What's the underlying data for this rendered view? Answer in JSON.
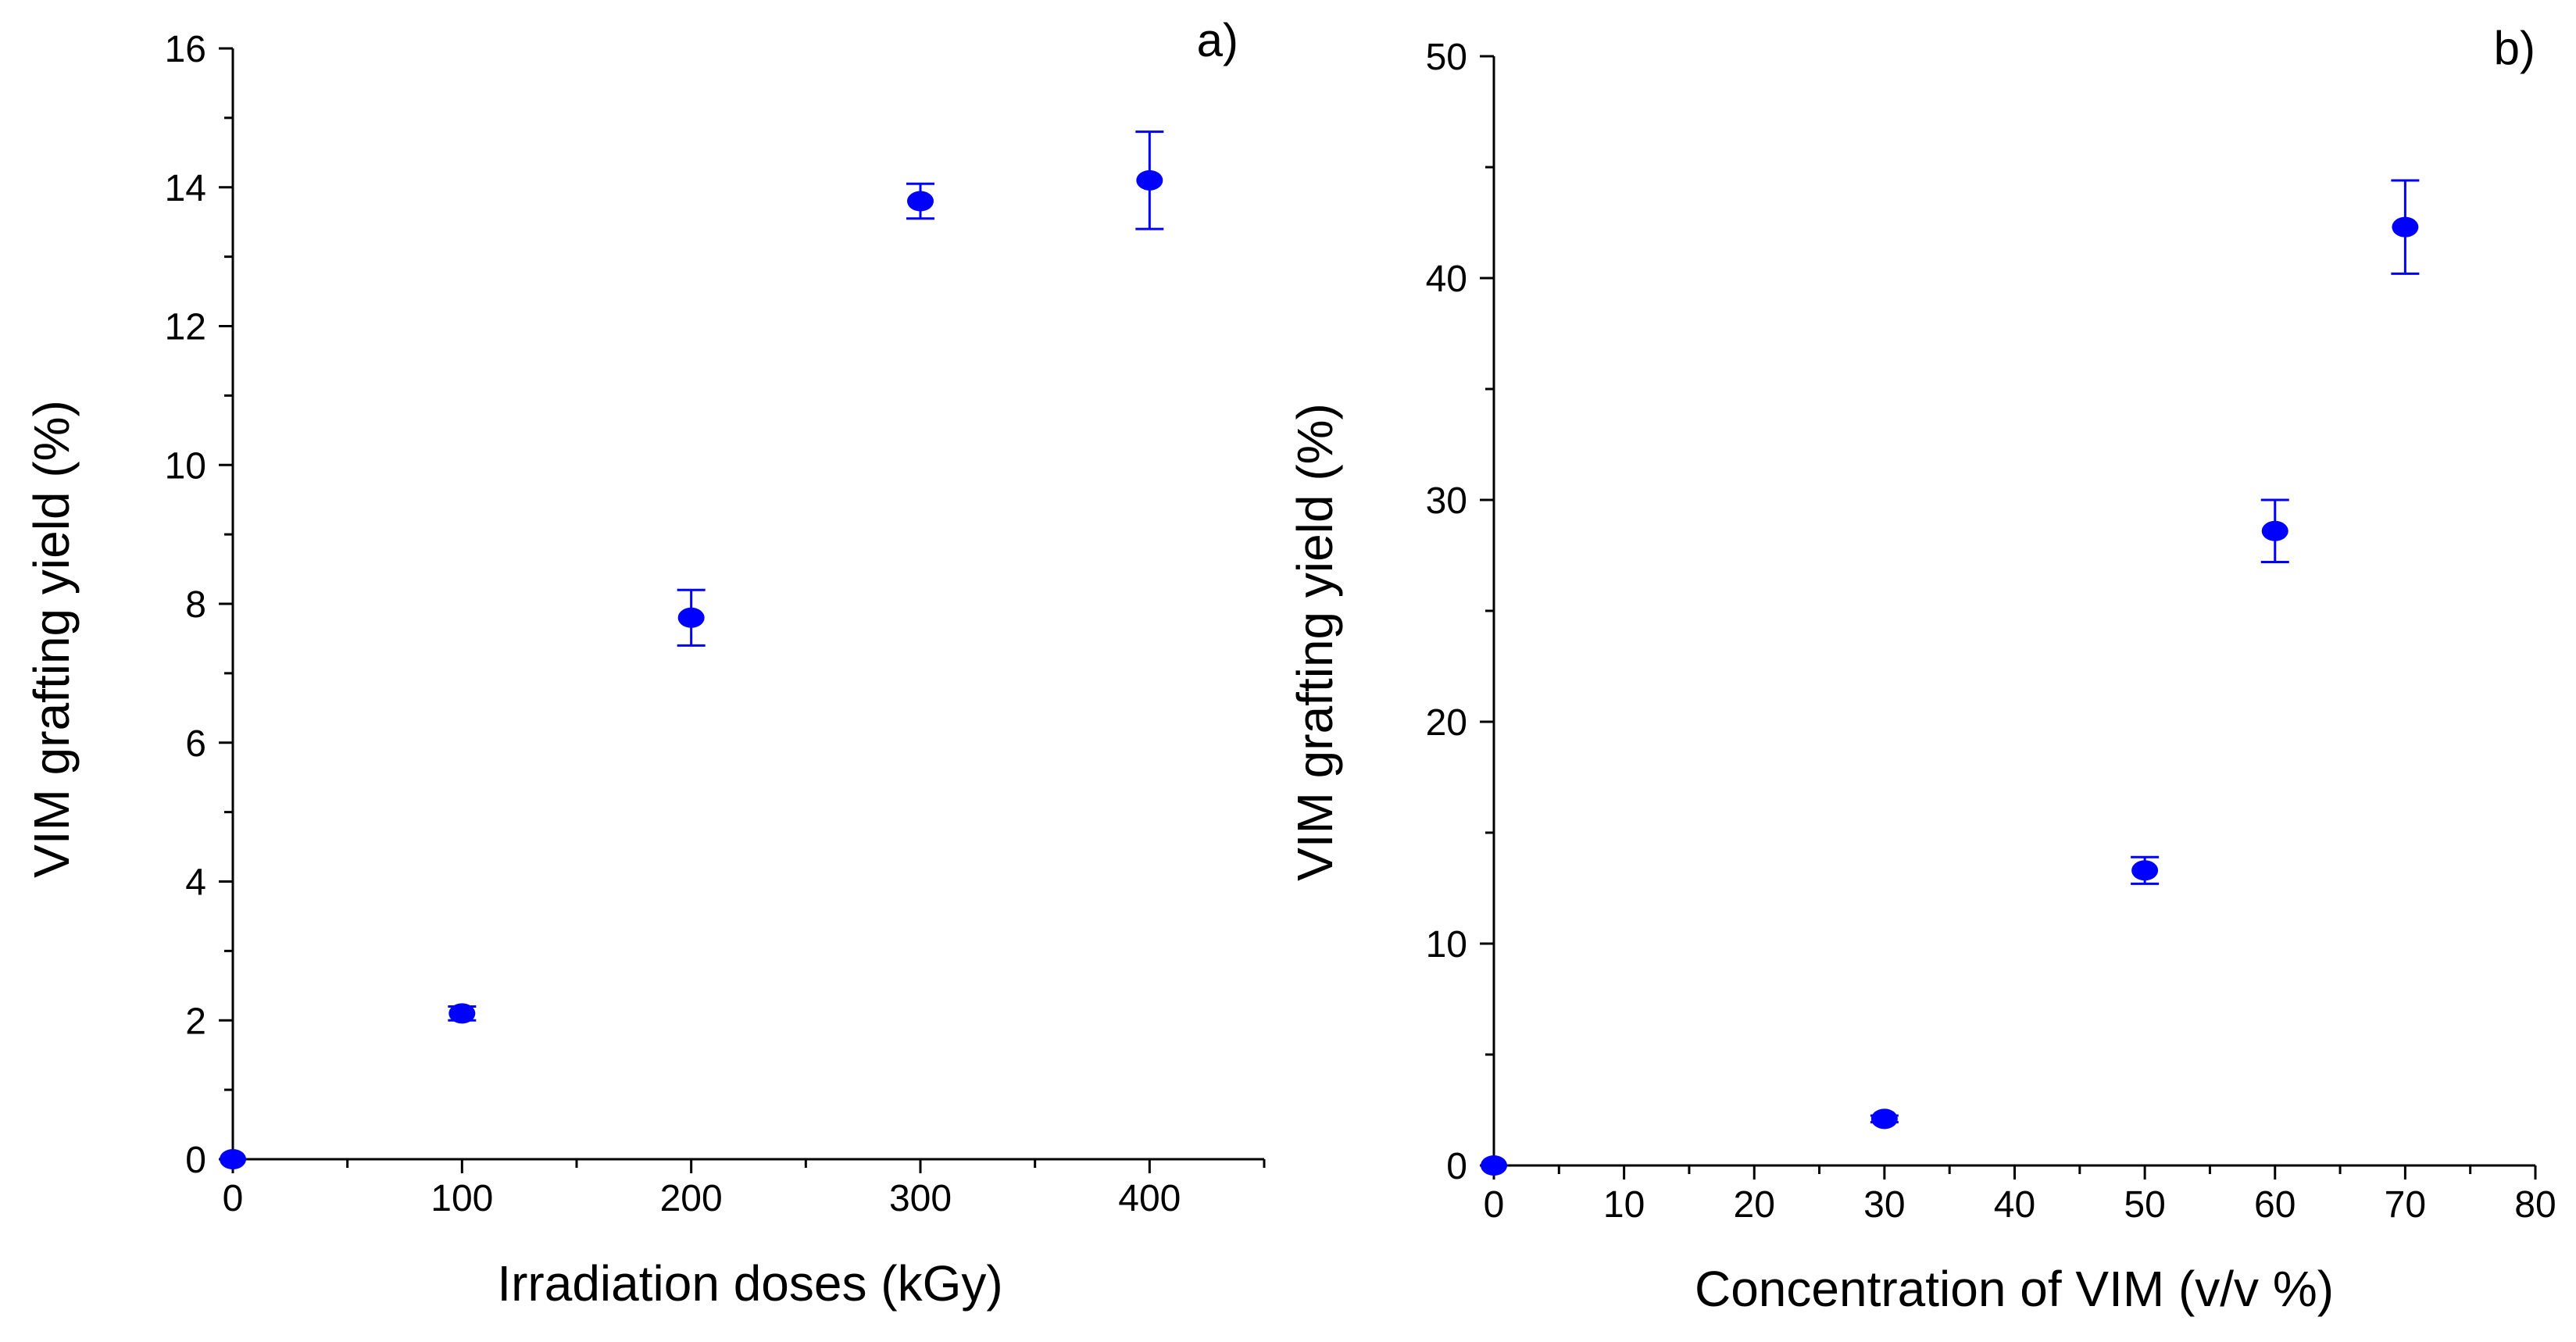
{
  "chart_data": [
    {
      "type": "scatter",
      "panel_label": "a)",
      "xlabel": "Irradiation doses (kGy)",
      "ylabel": "VIM grafting yield (%)",
      "xlim": [
        0,
        450
      ],
      "ylim": [
        0,
        16
      ],
      "x_ticks": [
        0,
        100,
        200,
        300,
        400
      ],
      "x_tick_labels": [
        "0",
        "100",
        "200",
        "300",
        "400"
      ],
      "x_minor_step": 50,
      "y_ticks": [
        0,
        2,
        4,
        6,
        8,
        10,
        12,
        14,
        16
      ],
      "y_tick_labels": [
        "0",
        "2",
        "4",
        "6",
        "8",
        "10",
        "12",
        "14",
        "16"
      ],
      "y_minor_step": 1,
      "series": [
        {
          "name": "VIM grafting yield",
          "color": "#0000ff",
          "x": [
            0,
            100,
            200,
            300,
            400
          ],
          "y": [
            0,
            2.1,
            7.8,
            13.8,
            14.1
          ],
          "yerr": [
            0,
            0.1,
            0.4,
            0.25,
            0.7
          ]
        }
      ]
    },
    {
      "type": "scatter",
      "panel_label": "b)",
      "xlabel": "Concentration of VIM (v/v %)",
      "ylabel": "VIM grafting yield (%)",
      "xlim": [
        0,
        80
      ],
      "ylim": [
        0,
        50
      ],
      "x_ticks": [
        0,
        10,
        20,
        30,
        40,
        50,
        60,
        70,
        80
      ],
      "x_tick_labels": [
        "0",
        "10",
        "20",
        "30",
        "40",
        "50",
        "60",
        "70",
        "80"
      ],
      "x_minor_step": 5,
      "y_ticks": [
        0,
        10,
        20,
        30,
        40,
        50
      ],
      "y_tick_labels": [
        "0",
        "10",
        "20",
        "30",
        "40",
        "50"
      ],
      "y_minor_step": 5,
      "series": [
        {
          "name": "VIM grafting yield",
          "color": "#0000ff",
          "x": [
            0,
            30,
            50,
            60,
            70
          ],
          "y": [
            0,
            2.1,
            13.3,
            28.6,
            42.3
          ],
          "yerr": [
            0,
            0.15,
            0.6,
            1.4,
            2.1
          ]
        }
      ]
    }
  ]
}
